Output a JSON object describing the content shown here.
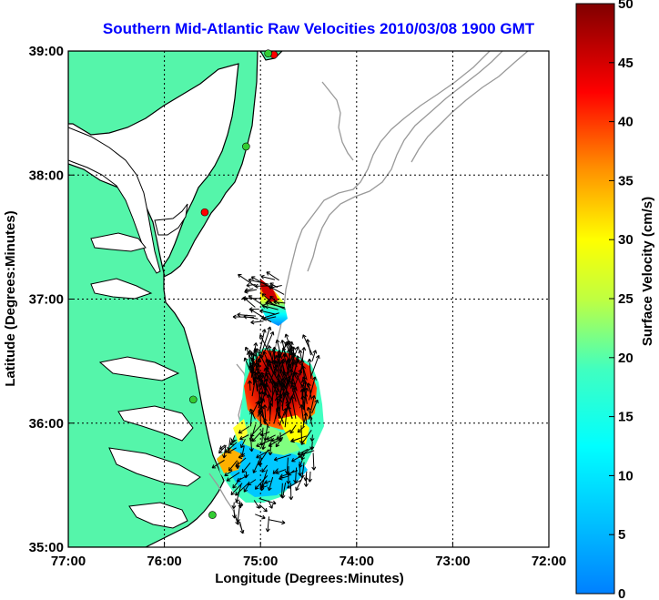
{
  "title": "Southern Mid-Atlantic Raw Velocities 2010/03/08 1900 GMT",
  "map": {
    "x_label": "Longitude (Degrees:Minutes)",
    "y_label": "Latitude (Degrees:Minutes)",
    "x_ticks": [
      "77:00",
      "76:00",
      "75:00",
      "74:00",
      "73:00",
      "72:00"
    ],
    "y_ticks": [
      "39:00",
      "38:00",
      "37:00",
      "36:00",
      "35:00"
    ],
    "lon_range": [
      -77,
      -72
    ],
    "lat_range": [
      35,
      39
    ],
    "grid": "dotted",
    "land_color": "#55f5aa",
    "coast_color": "#000000",
    "bathymetry_color": "#999999"
  },
  "colorbar": {
    "label": "Surface Velocity (cm/s)",
    "ticks": [
      "50",
      "45",
      "40",
      "35",
      "30",
      "25",
      "20",
      "15",
      "10",
      "5",
      "0"
    ],
    "range": [
      0,
      50
    ],
    "colormap": "jet"
  },
  "stations": [
    {
      "lon": -74.86,
      "lat": 38.97,
      "color": "#ff0000"
    },
    {
      "lon": -74.92,
      "lat": 38.98,
      "color": "#33cc33"
    },
    {
      "lon": -75.15,
      "lat": 38.23,
      "color": "#33cc33"
    },
    {
      "lon": -75.58,
      "lat": 37.7,
      "color": "#ff0000"
    },
    {
      "lon": -75.7,
      "lat": 36.19,
      "color": "#33cc33"
    },
    {
      "lon": -75.5,
      "lat": 35.26,
      "color": "#33cc33"
    }
  ]
}
